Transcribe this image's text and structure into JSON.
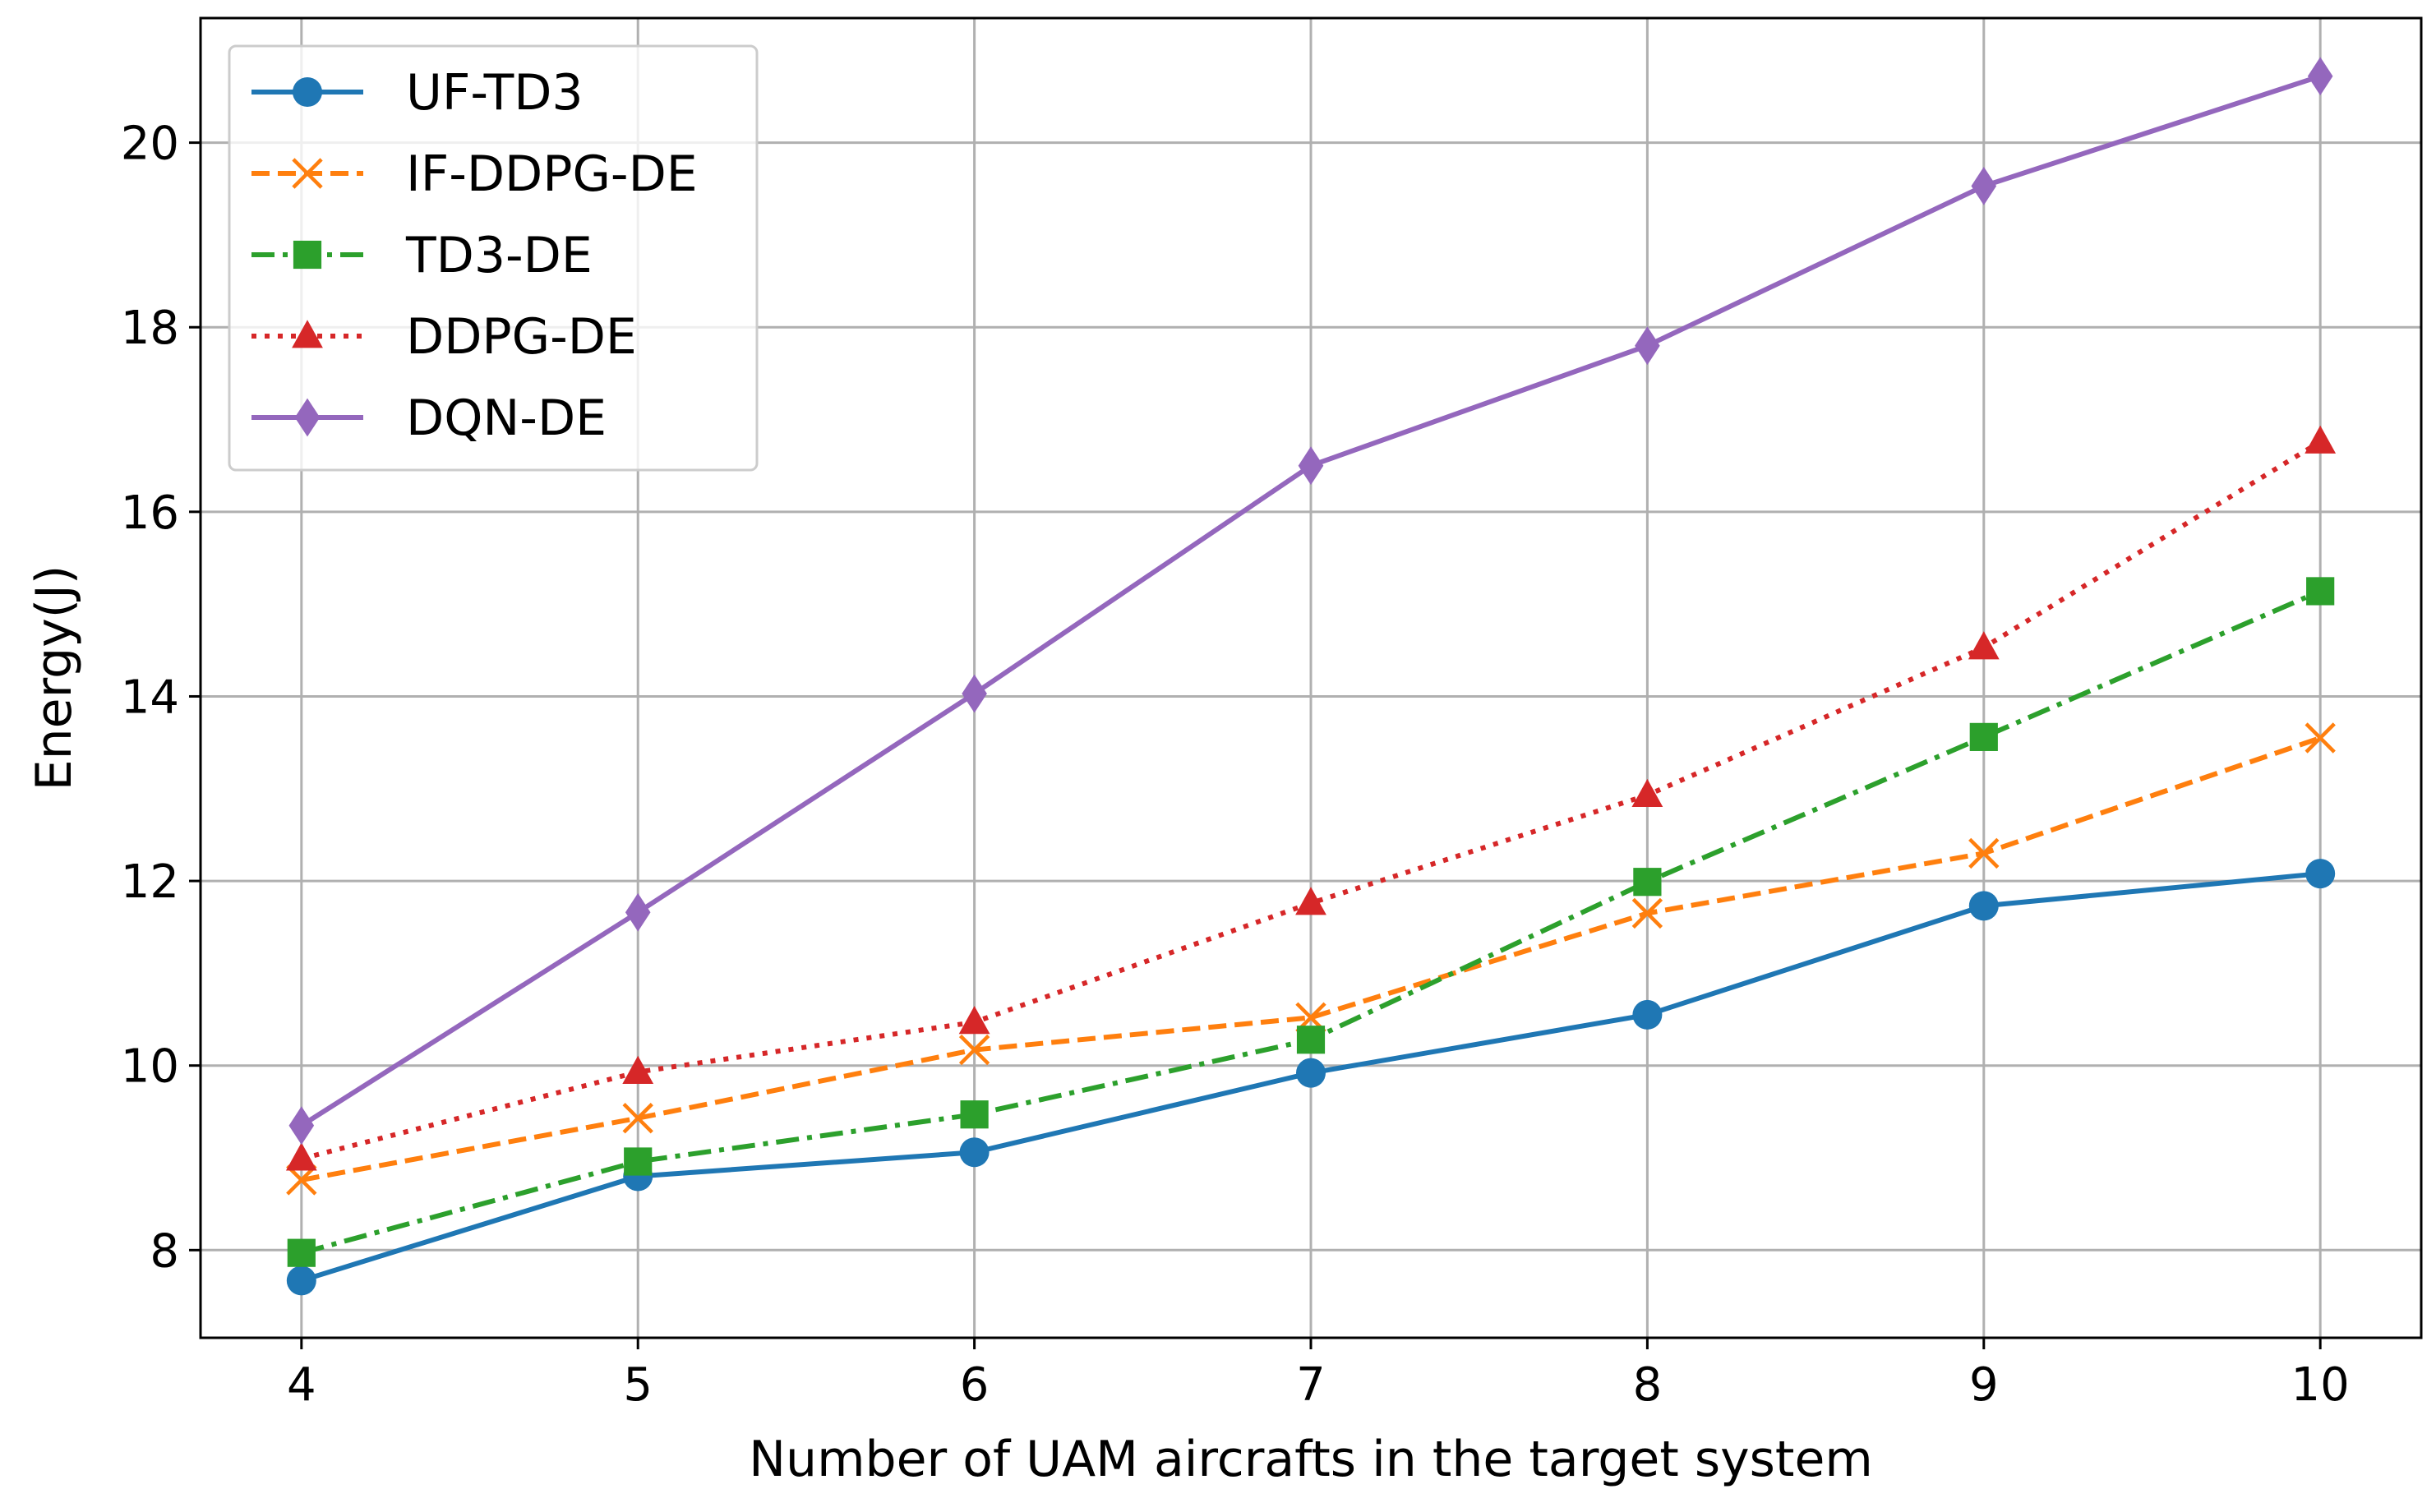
{
  "chart_data": {
    "type": "line",
    "title": "",
    "xlabel": "Number of UAM aircrafts in the target system",
    "ylabel": "Energy(J)",
    "x": [
      4,
      5,
      6,
      7,
      8,
      9,
      10
    ],
    "xlim": [
      3.7,
      10.3
    ],
    "ylim": [
      7.05,
      21.35
    ],
    "xticks": [
      4,
      5,
      6,
      7,
      8,
      9,
      10
    ],
    "yticks": [
      8,
      10,
      12,
      14,
      16,
      18,
      20
    ],
    "grid": true,
    "legend_position": "top-left",
    "series": [
      {
        "name": "UF-TD3",
        "values": [
          7.67,
          8.8,
          9.06,
          9.92,
          10.55,
          11.73,
          12.08
        ],
        "color": "#1f77b4",
        "marker": "circle",
        "linestyle": "solid"
      },
      {
        "name": "IF-DDPG-DE",
        "values": [
          8.76,
          9.43,
          10.17,
          10.52,
          11.65,
          12.3,
          13.55
        ],
        "color": "#ff7f0e",
        "marker": "x",
        "linestyle": "dashed"
      },
      {
        "name": "TD3-DE",
        "values": [
          7.97,
          8.96,
          9.47,
          10.28,
          11.99,
          13.56,
          15.14
        ],
        "color": "#2ca02c",
        "marker": "square",
        "linestyle": "dashdot"
      },
      {
        "name": "DDPG-DE",
        "values": [
          8.99,
          9.93,
          10.47,
          11.76,
          12.93,
          14.53,
          16.76
        ],
        "color": "#d62728",
        "marker": "triangle",
        "linestyle": "dotted"
      },
      {
        "name": "DQN-DE",
        "values": [
          9.35,
          11.66,
          14.03,
          16.5,
          17.8,
          19.53,
          20.72
        ],
        "color": "#9467bd",
        "marker": "diamond",
        "linestyle": "solid"
      }
    ]
  }
}
